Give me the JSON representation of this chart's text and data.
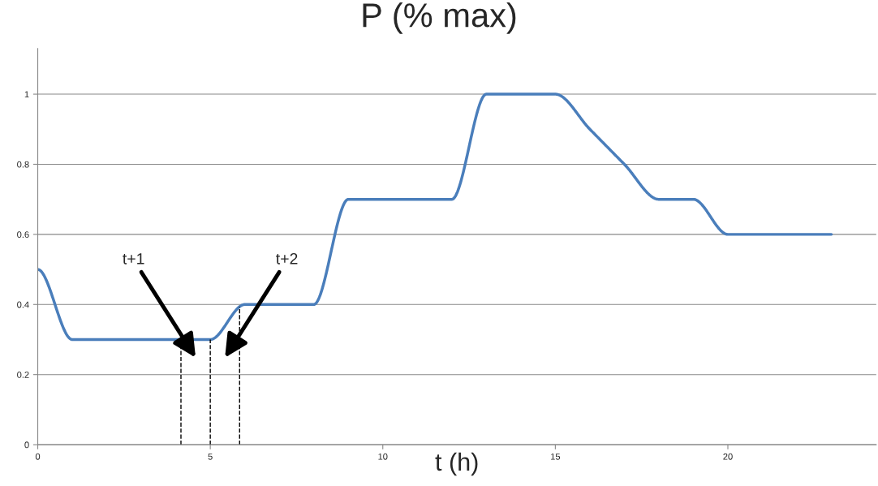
{
  "chart_data": {
    "type": "line",
    "title": "P (% max)",
    "xlabel": "t (h)",
    "x": [
      0,
      1,
      2,
      3,
      4,
      5,
      6,
      7,
      8,
      9,
      10,
      11,
      12,
      13,
      14,
      15,
      16,
      17,
      18,
      19,
      20,
      21,
      22,
      23
    ],
    "series": [
      {
        "color": "#4a7ebb",
        "values": [
          0.5,
          0.3,
          0.3,
          0.3,
          0.3,
          0.3,
          0.4,
          0.4,
          0.4,
          0.7,
          0.7,
          0.7,
          0.7,
          1.0,
          1.0,
          1.0,
          0.9,
          0.8,
          0.7,
          0.7,
          0.6,
          0.6,
          0.6,
          0.6
        ]
      }
    ],
    "xlim": [
      0,
      24.3
    ],
    "xticks": [
      0,
      5,
      10,
      15,
      20
    ],
    "ylim": [
      0,
      1.13
    ],
    "yticks": [
      0,
      {
        "value": 0.2,
        "label": "0.2"
      },
      {
        "value": 0.4,
        "label": "0.4"
      },
      {
        "value": 0.6,
        "label": "0.6"
      },
      {
        "value": 0.8,
        "label": "0.8"
      },
      1
    ],
    "grid": "y",
    "legend": false,
    "marker": "none",
    "line_style": "solid",
    "ref_lines": [
      {
        "axis": "x",
        "value": 4.15,
        "line_style": "dashed",
        "color": "#000000"
      },
      {
        "axis": "x",
        "value": 5,
        "line_style": "dashed",
        "color": "#000000"
      },
      {
        "axis": "x",
        "value": 5.85,
        "line_style": "dashed",
        "color": "#000000"
      }
    ],
    "annotations": [
      "t+1",
      "t+2"
    ]
  }
}
